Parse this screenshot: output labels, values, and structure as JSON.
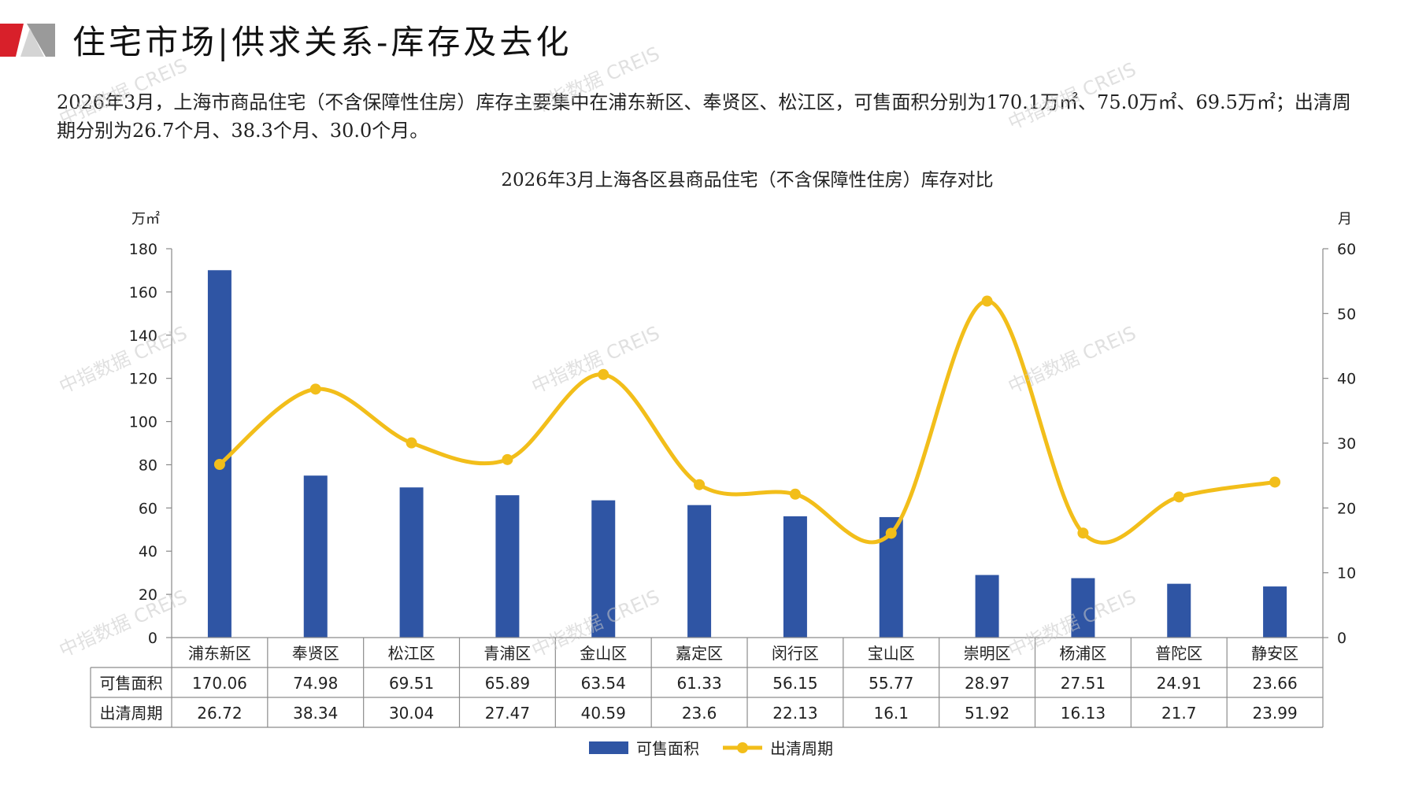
{
  "page": {
    "title": "住宅市场|供求关系-库存及去化",
    "summary": "2026年3月，上海市商品住宅（不含保障性住房）库存主要集中在浦东新区、奉贤区、松江区，可售面积分别为170.1万㎡、75.0万㎡、69.5万㎡；出清周期分别为26.7个月、38.3个月、30.0个月。",
    "watermark": "中指数据 CREIS"
  },
  "colors": {
    "bar": "#2F55A4",
    "line": "#F2BE1A",
    "logo_red": "#D8202A",
    "logo_gray": "#9A9A9A"
  },
  "chart_data": {
    "type": "bar",
    "title": "2026年3月上海各区县商品住宅（不含保障性住房）库存对比",
    "categories": [
      "浦东新区",
      "奉贤区",
      "松江区",
      "青浦区",
      "金山区",
      "嘉定区",
      "闵行区",
      "宝山区",
      "崇明区",
      "杨浦区",
      "普陀区",
      "静安区"
    ],
    "series": [
      {
        "name": "可售面积",
        "type": "bar",
        "axis": "left",
        "values": [
          170.06,
          74.98,
          69.51,
          65.89,
          63.54,
          61.33,
          56.15,
          55.77,
          28.97,
          27.51,
          24.91,
          23.66
        ],
        "labels": [
          "170.06",
          "74.98",
          "69.51",
          "65.89",
          "63.54",
          "61.33",
          "56.15",
          "55.77",
          "28.97",
          "27.51",
          "24.91",
          "23.66"
        ]
      },
      {
        "name": "出清周期",
        "type": "line",
        "axis": "right",
        "smooth": true,
        "values": [
          26.72,
          38.34,
          30.04,
          27.47,
          40.59,
          23.6,
          22.13,
          16.1,
          51.92,
          16.13,
          21.7,
          23.99
        ],
        "labels": [
          "26.72",
          "38.34",
          "30.04",
          "27.47",
          "40.59",
          "23.6",
          "22.13",
          "16.1",
          "51.92",
          "16.13",
          "21.7",
          "23.99"
        ]
      }
    ],
    "y_left": {
      "unit": "万㎡",
      "min": 0,
      "max": 180,
      "ticks": [
        0,
        20,
        40,
        60,
        80,
        100,
        120,
        140,
        160,
        180
      ]
    },
    "y_right": {
      "unit": "月",
      "min": 0,
      "max": 60,
      "ticks": [
        0,
        10,
        20,
        30,
        40,
        50,
        60
      ]
    },
    "legend": "bottom-center",
    "data_table": true,
    "grid": false
  }
}
